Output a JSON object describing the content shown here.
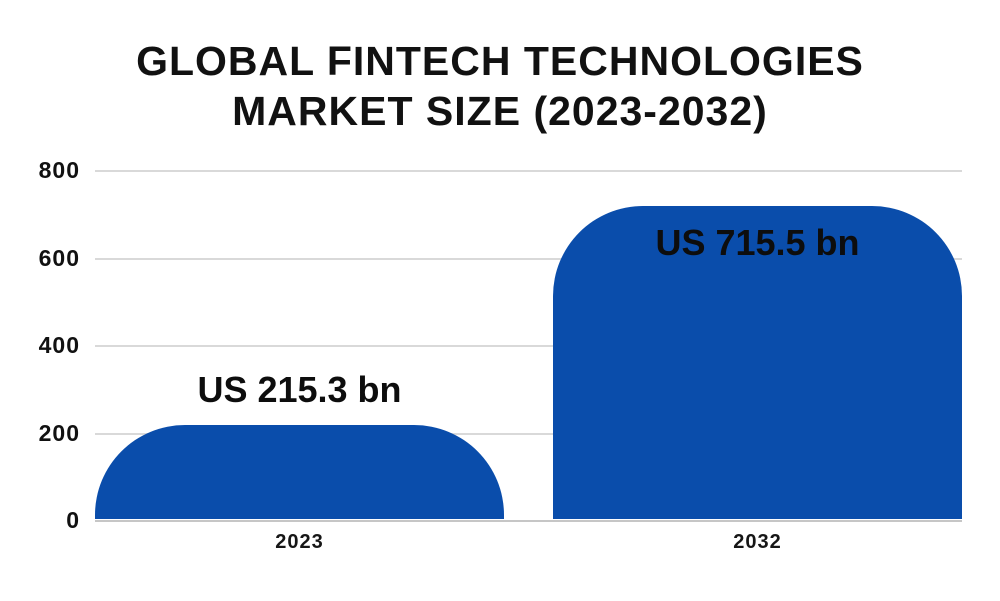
{
  "chart_data": {
    "type": "bar",
    "title": "GLOBAL FINTECH TECHNOLOGIES MARKET SIZE (2023-2032)",
    "title_line1": "GLOBAL FINTECH TECHNOLOGIES",
    "title_line2": "MARKET SIZE (2023-2032)",
    "categories": [
      "2023",
      "2032"
    ],
    "values": [
      215.3,
      715.5
    ],
    "value_labels": [
      "US 215.3 bn",
      "US 715.5 bn"
    ],
    "label_placement": [
      "above",
      "inside"
    ],
    "yticks": [
      0,
      200,
      400,
      600,
      800
    ],
    "ylim": [
      0,
      800
    ],
    "xlabel": "",
    "ylabel": "",
    "grid": true,
    "legend": "none",
    "bar_color": "#0A4DAB",
    "gridline_color": "#d9d9d9",
    "baseline_color": "#c6c6c6",
    "text_color": "#111111",
    "background_color": "#ffffff"
  }
}
